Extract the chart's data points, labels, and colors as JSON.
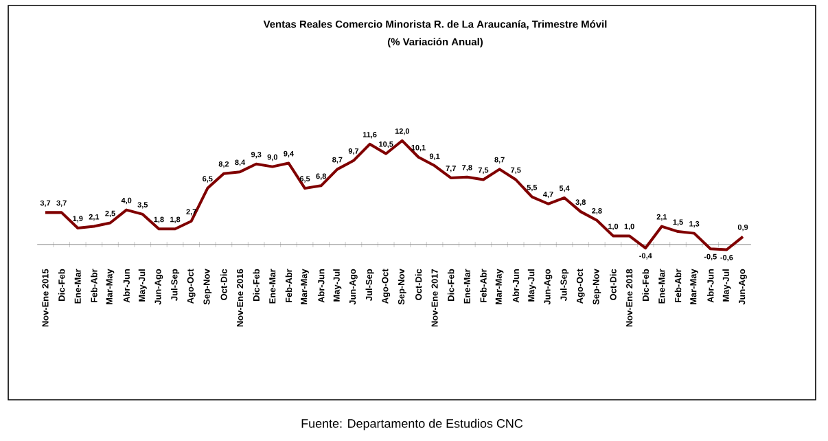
{
  "chart_data": {
    "type": "line",
    "title": "Ventas Reales Comercio Minorista R. de La Araucanía, Trimestre Móvil",
    "subtitle": "(% Variación Anual)",
    "categories": [
      "Nov-Ene 2015",
      "Dic-Feb",
      "Ene-Mar",
      "Feb-Abr",
      "Mar-May",
      "Abr-Jun",
      "May-Jul",
      "Jun-Ago",
      "Jul-Sep",
      "Ago-Oct",
      "Sep-Nov",
      "Oct-Dic",
      "Nov-Ene 2016",
      "Dic-Feb",
      "Ene-Mar",
      "Feb-Abr",
      "Mar-May",
      "Abr-Jun",
      "May-Jul",
      "Jun-Ago",
      "Jul-Sep",
      "Ago-Oct",
      "Sep-Nov",
      "Oct-Dic",
      "Nov-Ene 2017",
      "Dic-Feb",
      "Ene-Mar",
      "Feb-Abr",
      "Mar-May",
      "Abr-Jun",
      "May-Jul",
      "Jun-Ago",
      "Jul-Sep",
      "Ago-Oct",
      "Sep-Nov",
      "Oct-Dic",
      "Nov-Ene 2018",
      "Dic-Feb",
      "Ene-Mar",
      "Feb-Abr",
      "Mar-May",
      "Abr-Jun",
      "May-Jul",
      "Jun-Ago"
    ],
    "values": [
      3.7,
      3.7,
      1.9,
      2.1,
      2.5,
      4.0,
      3.5,
      1.8,
      1.8,
      2.7,
      6.5,
      8.2,
      8.4,
      9.3,
      9.0,
      9.4,
      6.5,
      6.8,
      8.7,
      9.7,
      11.6,
      10.5,
      12.0,
      10.1,
      9.1,
      7.7,
      7.8,
      7.5,
      8.7,
      7.5,
      5.5,
      4.7,
      5.4,
      3.8,
      2.8,
      1.0,
      1.0,
      -0.4,
      2.1,
      1.5,
      1.3,
      -0.5,
      -0.6,
      0.9
    ],
    "value_labels": [
      "3,7",
      "3,7",
      "1,9",
      "2,1",
      "2,5",
      "4,0",
      "3,5",
      "1,8",
      "1,8",
      "2,7",
      "6,5",
      "8,2",
      "8,4",
      "9,3",
      "9,0",
      "9,4",
      "6,5",
      "6,8",
      "8,7",
      "9,7",
      "11,6",
      "10,5",
      "12,0",
      "10,1",
      "9,1",
      "7,7",
      "7,8",
      "7,5",
      "8,7",
      "7,5",
      "5,5",
      "4,7",
      "5,4",
      "3,8",
      "2,8",
      "1,0",
      "1,0",
      "-0,4",
      "2,1",
      "1,5",
      "1,3",
      "-0,5",
      "-0,6",
      "0,9"
    ],
    "color": "#800000",
    "annotations": [
      "Fuente: Departamento de Estudios CNC"
    ]
  }
}
